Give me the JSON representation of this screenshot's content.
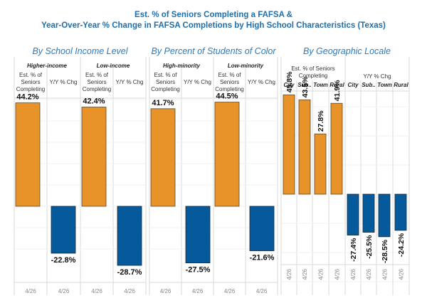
{
  "title_line1": "Est. % of Seniors Completing a FAFSA &",
  "title_line2": "Year-Over-Year % Change in FAFSA Completions by High School Characteristics (Texas)",
  "colors": {
    "completing": "#e8922a",
    "yoy": "#045a9a",
    "title": "#1f6fab",
    "panel_title": "#2a7bbf"
  },
  "headers": {
    "est": "Est. % of Seniors Completing",
    "yoy": "Y/Y % Chg"
  },
  "chart_data": [
    {
      "type": "bar",
      "title": "By School Income Level",
      "groups": [
        {
          "name": "Higher-income",
          "completing": 44.2,
          "yoy": -22.8,
          "date": "4/26"
        },
        {
          "name": "Low-income",
          "completing": 42.4,
          "yoy": -28.7,
          "date": "4/26"
        }
      ],
      "labels": {
        "completing": [
          "44.2%",
          "42.4%"
        ],
        "yoy": [
          "-22.8%",
          "-28.7%"
        ]
      }
    },
    {
      "type": "bar",
      "title": "By Percent of Students of Color",
      "groups": [
        {
          "name": "High-minority",
          "completing": 41.7,
          "yoy": -27.5,
          "date": "4/26"
        },
        {
          "name": "Low-minority",
          "completing": 44.5,
          "yoy": -21.6,
          "date": "4/26"
        }
      ],
      "labels": {
        "completing": [
          "41.7%",
          "44.5%"
        ],
        "yoy": [
          "-27.5%",
          "-21.6%"
        ]
      }
    },
    {
      "type": "bar",
      "title": "By Geographic Locale",
      "categories": [
        "City",
        "Sub..",
        "Town",
        "Rural"
      ],
      "completing": [
        45.8,
        43.5,
        27.8,
        41.9
      ],
      "yoy": [
        -27.4,
        -25.5,
        -28.5,
        -24.2
      ],
      "labels": {
        "completing": [
          "45.8%",
          "43.5%",
          "27.8%",
          "41.9%"
        ],
        "yoy": [
          "-27.4%",
          "-25.5%",
          "-28.5%",
          "-24.2%"
        ]
      },
      "date": "4/26"
    }
  ]
}
